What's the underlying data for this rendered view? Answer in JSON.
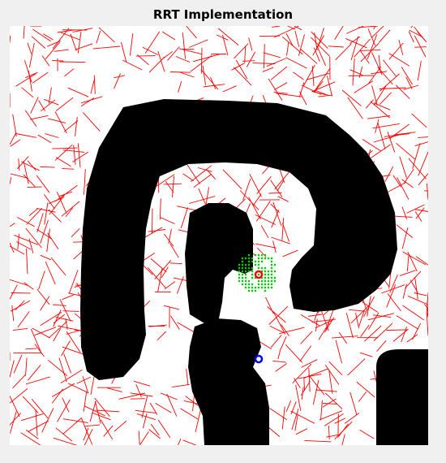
{
  "figure": {
    "title": "RRT Implementation"
  },
  "colors": {
    "background": "#f0f0f0",
    "free_space": "#ffffff",
    "obstacle": "#000000",
    "tree_edges": "#ff0000",
    "goal_region_samples": "#00cc00",
    "start_marker": "#0000ff",
    "goal_marker": "#ff0000"
  },
  "markers": {
    "start_icon": "blue-circle-marker",
    "goal_icon": "red-circle-marker"
  },
  "random_seed": 7
}
